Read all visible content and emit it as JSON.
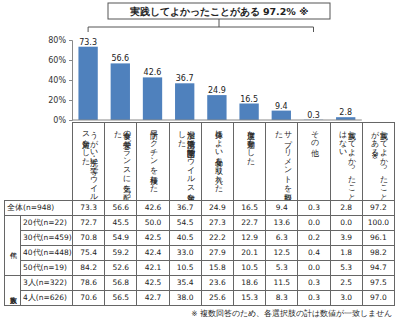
{
  "chart_data": {
    "type": "bar",
    "categories": [
      "うがい・手洗い等でウイルス対策をした",
      "食事の栄養バランスに気を配った",
      "予防ワクチンを接種した",
      "加湿や空気清浄で空間除菌でウイルス対策をした",
      "身体によい食品を取り入れた",
      "適度な運動をした",
      "サプリメントを摂取した",
      "その他",
      "実践してよかったことはない"
    ],
    "values": [
      73.3,
      56.6,
      42.6,
      36.7,
      24.9,
      16.5,
      9.4,
      0.3,
      2.8
    ],
    "color": "#4f81bd",
    "ylim": [
      0,
      80
    ],
    "yticks": [
      {
        "value": 0,
        "label": "0%"
      },
      {
        "value": 20,
        "label": "20%"
      },
      {
        "value": 40,
        "label": "40%"
      },
      {
        "value": 60,
        "label": "60%"
      },
      {
        "value": 80,
        "label": "80%"
      }
    ],
    "data_labels": true,
    "grid": false,
    "annotations": [
      "実践してよかったことがある 97.2% ※"
    ]
  },
  "table": {
    "last_column": "実践してよかったことがある※",
    "overall": {
      "label": "全体(n=948)",
      "cells": [
        "73.3",
        "56.6",
        "42.6",
        "36.7",
        "24.9",
        "16.5",
        "9.4",
        "0.3",
        "2.8",
        "97.2"
      ]
    },
    "groups": [
      {
        "label": "年代",
        "rows": [
          {
            "label": "20代(n=22)",
            "cells": [
              "72.7",
              "45.5",
              "50.0",
              "54.5",
              "27.3",
              "22.7",
              "13.6",
              "0.0",
              "0.0",
              "100.0"
            ]
          },
          {
            "label": "30代(n=459)",
            "cells": [
              "70.8",
              "54.9",
              "42.5",
              "40.5",
              "22.2",
              "12.9",
              "6.3",
              "0.2",
              "3.9",
              "96.1"
            ]
          },
          {
            "label": "40代(n=448)",
            "cells": [
              "75.4",
              "59.2",
              "42.4",
              "33.0",
              "27.9",
              "20.1",
              "12.5",
              "0.4",
              "1.8",
              "98.2"
            ]
          },
          {
            "label": "50代(n=19)",
            "cells": [
              "84.2",
              "52.6",
              "42.1",
              "10.5",
              "15.8",
              "10.5",
              "5.3",
              "0.0",
              "5.3",
              "94.7"
            ]
          }
        ]
      },
      {
        "label": "家族人数",
        "rows": [
          {
            "label": "3人(n=322)",
            "cells": [
              "78.6",
              "56.8",
              "42.5",
              "35.4",
              "23.6",
              "18.6",
              "11.5",
              "0.3",
              "2.5",
              "97.5"
            ]
          },
          {
            "label": "4人(n=626)",
            "cells": [
              "70.6",
              "56.5",
              "42.7",
              "38.0",
              "25.6",
              "15.3",
              "8.3",
              "0.3",
              "3.0",
              "97.0"
            ]
          }
        ]
      }
    ]
  },
  "footnote": "※ 複数回答のため、各選択肢の計は数値が一致しません"
}
